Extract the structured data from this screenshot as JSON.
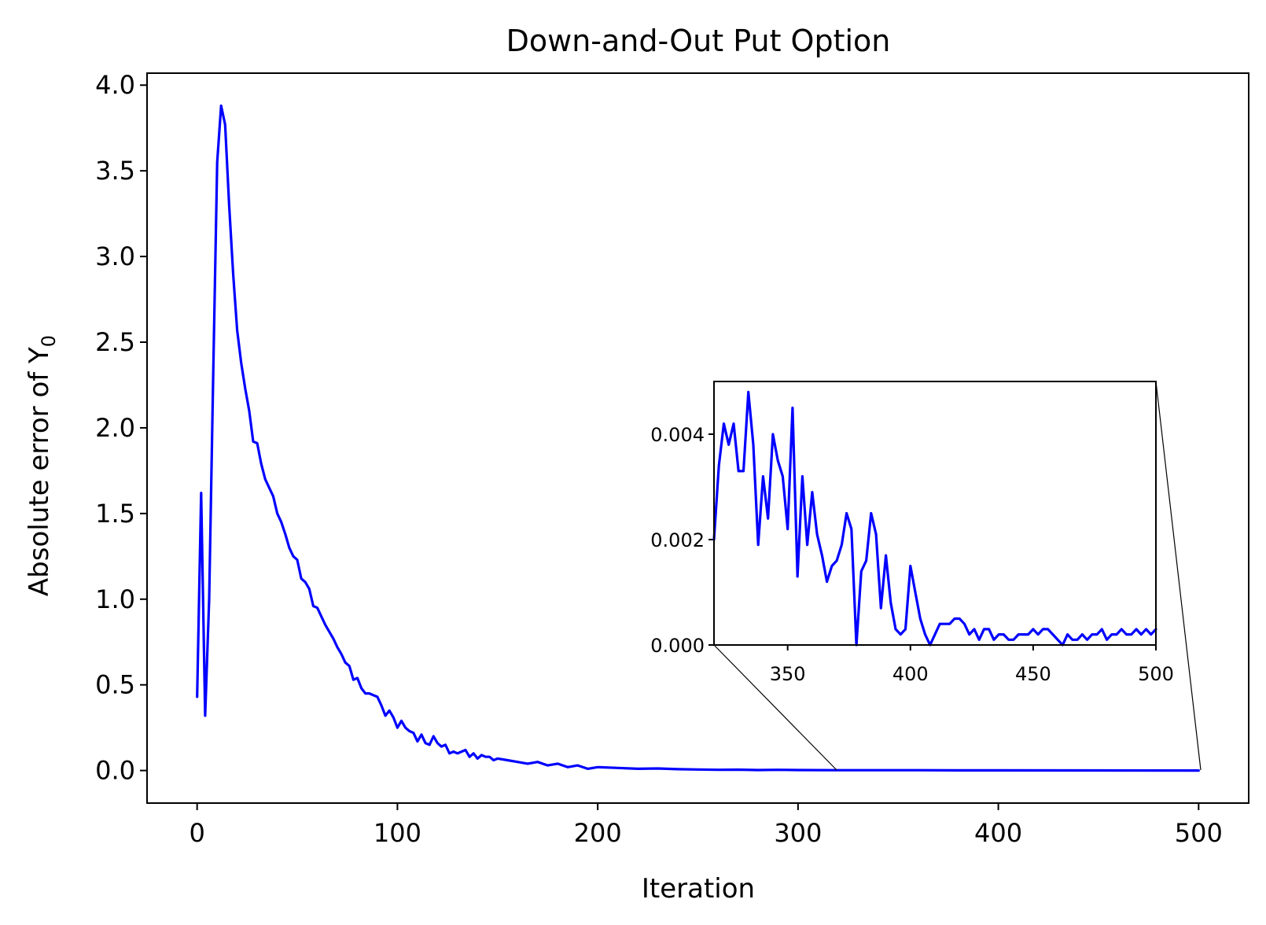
{
  "chart_data": [
    {
      "type": "line",
      "title": "Down-and-Out Put Option",
      "xlabel": "Iteration",
      "ylabel": "Absolute error of Y",
      "ylabel_subscript": "0",
      "xlim": [
        -25,
        525
      ],
      "ylim": [
        -0.19,
        4.07
      ],
      "xticks": [
        0,
        100,
        200,
        300,
        400,
        500
      ],
      "xtick_labels": [
        "0",
        "100",
        "200",
        "300",
        "400",
        "500"
      ],
      "yticks": [
        0.0,
        0.5,
        1.0,
        1.5,
        2.0,
        2.5,
        3.0,
        3.5,
        4.0
      ],
      "ytick_labels": [
        "0.0",
        "0.5",
        "1.0",
        "1.5",
        "2.0",
        "2.5",
        "3.0",
        "3.5",
        "4.0"
      ],
      "grid": false,
      "color": "#0000ff",
      "series": [
        {
          "x": [
            0,
            2,
            4,
            6,
            8,
            10,
            12,
            14,
            16,
            18,
            20,
            22,
            24,
            26,
            28,
            30,
            32,
            34,
            36,
            38,
            40,
            42,
            44,
            46,
            48,
            50,
            52,
            54,
            56,
            58,
            60,
            62,
            64,
            66,
            68,
            70,
            72,
            74,
            76,
            78,
            80,
            82,
            84,
            86,
            88,
            90,
            92,
            94,
            96,
            98,
            100,
            102,
            104,
            106,
            108,
            110,
            112,
            114,
            116,
            118,
            120,
            122,
            124,
            126,
            128,
            130,
            132,
            134,
            136,
            138,
            140,
            142,
            144,
            146,
            148,
            150,
            155,
            160,
            165,
            170,
            175,
            180,
            185,
            190,
            195,
            200,
            210,
            220,
            230,
            240,
            250,
            260,
            270,
            280,
            290,
            300,
            320,
            340,
            360,
            380,
            400,
            450,
            500
          ],
          "y": [
            0.43,
            1.62,
            0.32,
            1.0,
            2.3,
            3.55,
            3.88,
            3.77,
            3.3,
            2.9,
            2.57,
            2.38,
            2.23,
            2.1,
            1.92,
            1.91,
            1.79,
            1.7,
            1.65,
            1.6,
            1.5,
            1.45,
            1.38,
            1.3,
            1.25,
            1.23,
            1.12,
            1.1,
            1.06,
            0.96,
            0.95,
            0.9,
            0.85,
            0.81,
            0.77,
            0.72,
            0.68,
            0.63,
            0.61,
            0.53,
            0.54,
            0.48,
            0.45,
            0.45,
            0.44,
            0.43,
            0.38,
            0.32,
            0.35,
            0.31,
            0.25,
            0.29,
            0.25,
            0.23,
            0.22,
            0.17,
            0.21,
            0.16,
            0.15,
            0.2,
            0.16,
            0.14,
            0.15,
            0.1,
            0.11,
            0.1,
            0.11,
            0.12,
            0.08,
            0.1,
            0.07,
            0.09,
            0.08,
            0.08,
            0.06,
            0.07,
            0.06,
            0.05,
            0.04,
            0.05,
            0.03,
            0.04,
            0.02,
            0.03,
            0.01,
            0.02,
            0.015,
            0.01,
            0.012,
            0.008,
            0.006,
            0.004,
            0.005,
            0.003,
            0.004,
            0.003,
            0.002,
            0.002,
            0.002,
            0.001,
            0.001,
            0.0003,
            0.0002
          ]
        }
      ]
    },
    {
      "type": "line",
      "title": "",
      "xlim": [
        320,
        500
      ],
      "ylim": [
        0.0,
        0.005
      ],
      "xticks": [
        350,
        400,
        450,
        500
      ],
      "xtick_labels": [
        "350",
        "400",
        "450",
        "500"
      ],
      "yticks": [
        0.0,
        0.002,
        0.004
      ],
      "ytick_labels": [
        "0.000",
        "0.002",
        "0.004"
      ],
      "grid": false,
      "color": "#0000ff",
      "series": [
        {
          "x": [
            320,
            322,
            324,
            326,
            328,
            330,
            332,
            334,
            336,
            338,
            340,
            342,
            344,
            346,
            348,
            350,
            352,
            354,
            356,
            358,
            360,
            362,
            364,
            366,
            368,
            370,
            372,
            374,
            376,
            378,
            380,
            382,
            384,
            386,
            388,
            390,
            392,
            394,
            396,
            398,
            400,
            402,
            404,
            406,
            408,
            410,
            412,
            414,
            416,
            418,
            420,
            422,
            424,
            426,
            428,
            430,
            432,
            434,
            436,
            438,
            440,
            442,
            444,
            446,
            448,
            450,
            452,
            454,
            456,
            458,
            460,
            462,
            464,
            466,
            468,
            470,
            472,
            474,
            476,
            478,
            480,
            482,
            484,
            486,
            488,
            490,
            492,
            494,
            496,
            498,
            500
          ],
          "y": [
            0.002,
            0.0034,
            0.0042,
            0.0038,
            0.0042,
            0.0033,
            0.0033,
            0.0048,
            0.0038,
            0.0019,
            0.0032,
            0.0024,
            0.004,
            0.0035,
            0.0032,
            0.0022,
            0.0045,
            0.0013,
            0.0032,
            0.0019,
            0.0029,
            0.0021,
            0.0017,
            0.0012,
            0.0015,
            0.0016,
            0.0019,
            0.0025,
            0.0022,
            0.0,
            0.0014,
            0.0016,
            0.0025,
            0.0021,
            0.0007,
            0.0017,
            0.0008,
            0.0003,
            0.0002,
            0.0003,
            0.0015,
            0.001,
            0.0005,
            0.0002,
            0.0,
            0.0002,
            0.0004,
            0.0004,
            0.0004,
            0.0005,
            0.0005,
            0.0004,
            0.0002,
            0.0003,
            0.0001,
            0.0003,
            0.0003,
            0.0001,
            0.0002,
            0.0002,
            0.0001,
            0.0001,
            0.0002,
            0.0002,
            0.0002,
            0.0003,
            0.0002,
            0.0003,
            0.0003,
            0.0002,
            0.0001,
            0.0,
            0.0002,
            0.0001,
            0.0001,
            0.0002,
            0.0001,
            0.0002,
            0.0002,
            0.0003,
            0.0001,
            0.0002,
            0.0002,
            0.0003,
            0.0002,
            0.0002,
            0.0003,
            0.0002,
            0.0003,
            0.0002,
            0.0003
          ]
        }
      ]
    }
  ]
}
